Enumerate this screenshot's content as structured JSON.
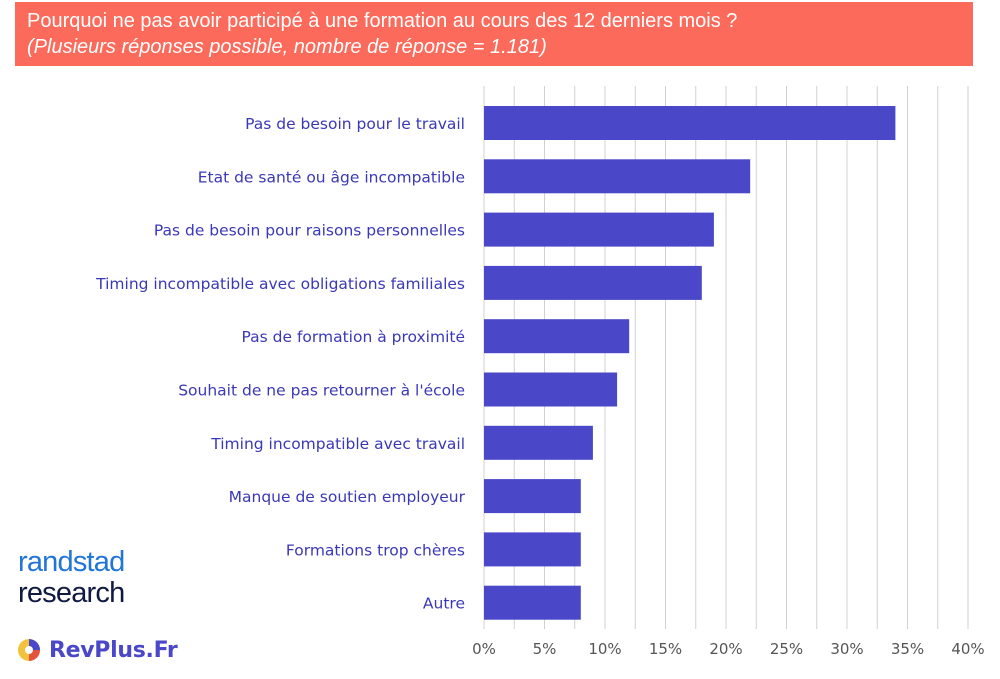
{
  "header": {
    "title": "Pourquoi ne pas avoir participé à une formation au cours des 12 derniers mois ?",
    "subtitle": "(Plusieurs réponses possible, nombre de réponse = 1.181)"
  },
  "brand": {
    "line1": "randstad",
    "line2": "research",
    "site": "RevPlus.Fr"
  },
  "colors": {
    "bar": "#4a47c8",
    "label": "#3b38b8",
    "banner": "#fb6a5a",
    "grid": "#d0d0d0",
    "tick": "#555555"
  },
  "chart_data": {
    "type": "bar",
    "orientation": "horizontal",
    "categories": [
      "Pas de besoin pour le travail",
      "Etat de santé ou âge incompatible",
      "Pas de besoin pour raisons personnelles",
      "Timing incompatible avec obligations familiales",
      "Pas de formation à proximité",
      "Souhait de ne pas retourner à l'école",
      "Timing incompatible avec travail",
      "Manque de soutien employeur",
      "Formations trop chères",
      "Autre"
    ],
    "values": [
      34,
      22,
      19,
      18,
      12,
      11,
      9,
      8,
      8,
      8
    ],
    "xlim": [
      0,
      40
    ],
    "xticks": [
      "0%",
      "5%",
      "10%",
      "15%",
      "20%",
      "25%",
      "30%",
      "35%",
      "40%"
    ],
    "xlabel": "",
    "ylabel": "",
    "grid": "vertical",
    "unit": "%"
  }
}
